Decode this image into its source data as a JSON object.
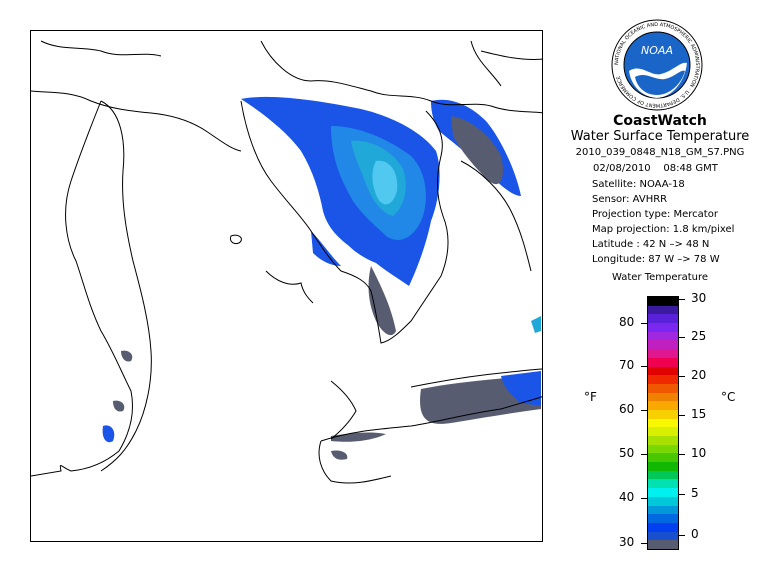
{
  "logo": {
    "text": "NOAA",
    "ring_text": "NATIONAL OCEANIC AND ATMOSPHERIC ADMINISTRATION · U.S. DEPARTMENT OF COMMERCE"
  },
  "header": {
    "title": "CoastWatch",
    "subtitle": "Water Surface Temperature",
    "filename": "2010_039_0848_N18_GM_S7.PNG",
    "datetime": "02/08/2010    08:48 GMT"
  },
  "metadata": {
    "satellite": "Satellite: NOAA-18",
    "sensor": "Sensor: AVHRR",
    "projection_type": "Projection type:  Mercator",
    "map_projection": "Map projection: 1.8 km/pixel",
    "latitude": "Latitude : 42 N –> 48 N",
    "longitude": "Longitude: 87 W –> 78 W"
  },
  "legend": {
    "title": "Water Temperature",
    "unit_f": "°F",
    "unit_c": "°C",
    "f_ticks": [
      "80",
      "70",
      "60",
      "50",
      "40",
      "30"
    ],
    "c_ticks": [
      "30",
      "25",
      "20",
      "15",
      "10",
      "5",
      "0"
    ],
    "colors": [
      "#000000",
      "#3a1a9e",
      "#5a22d8",
      "#7a28f0",
      "#a028e0",
      "#c020c0",
      "#e01890",
      "#f00050",
      "#e00000",
      "#f02800",
      "#f05800",
      "#f08000",
      "#f8a800",
      "#f8d000",
      "#f8f800",
      "#d8f000",
      "#a8e000",
      "#78d800",
      "#48c800",
      "#10b800",
      "#00c858",
      "#00e0b0",
      "#00f0f0",
      "#00c8d8",
      "#0098d8",
      "#0068e0",
      "#0040f0",
      "#1850d0",
      "#585c70"
    ]
  }
}
